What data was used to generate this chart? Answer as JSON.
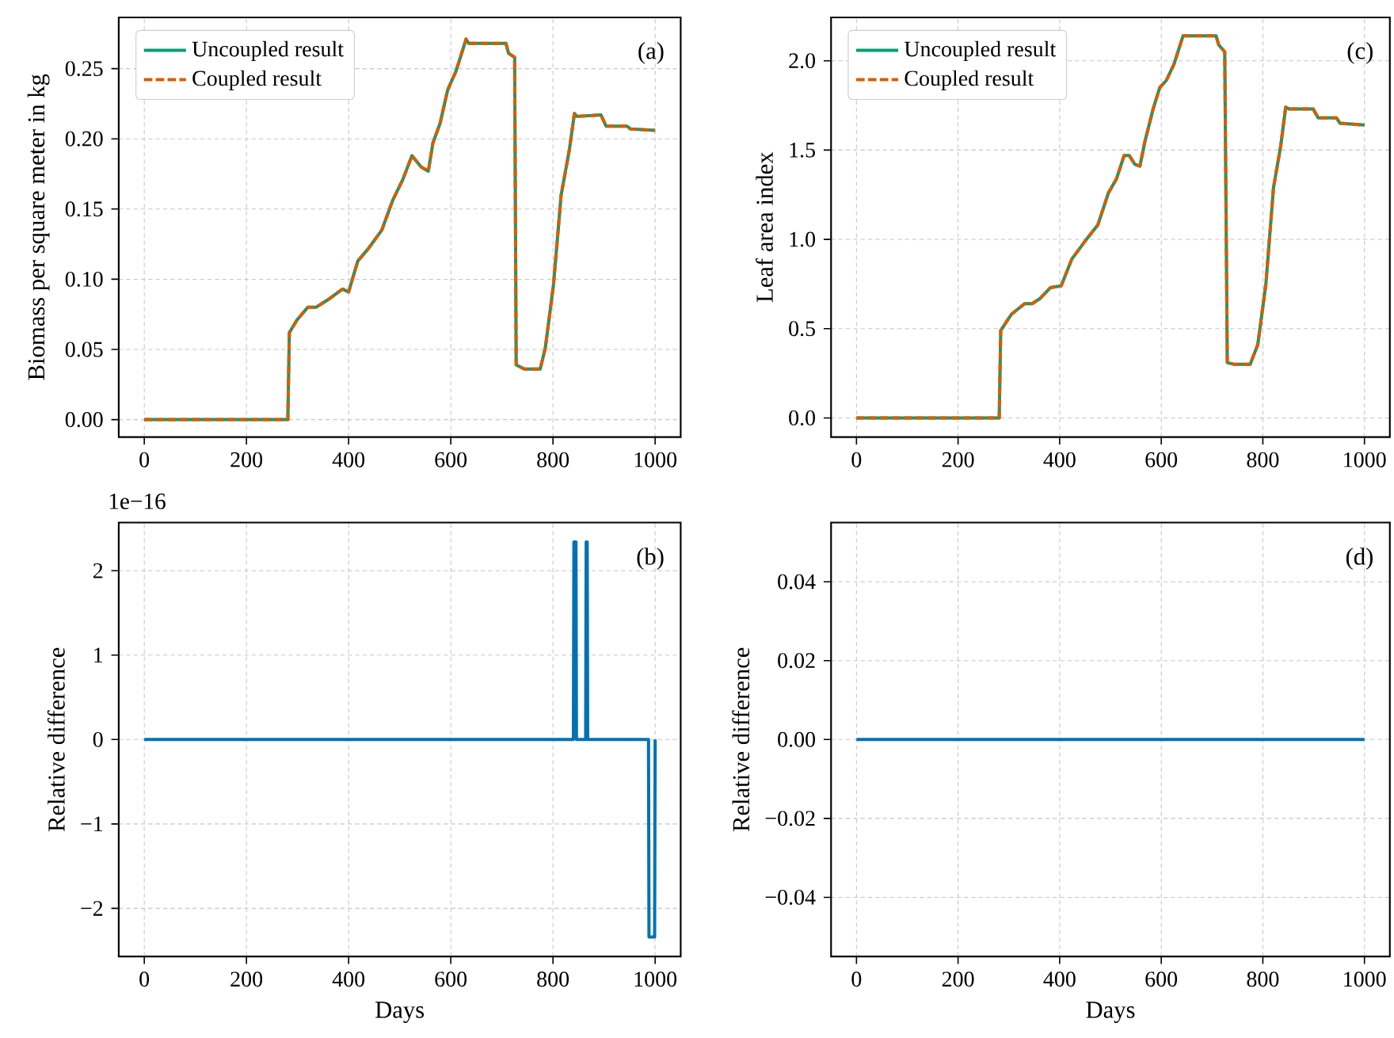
{
  "chart_data": [
    {
      "type": "line",
      "ylabel": "Biomass per square meter in kg",
      "annotations": [
        "(a)"
      ],
      "xlim": [
        -50,
        1050
      ],
      "ylim": [
        -0.0124,
        0.2865
      ],
      "xticks": [
        0,
        200,
        400,
        600,
        800,
        1000
      ],
      "yticks": [
        {
          "value": 0,
          "label": "0.00"
        },
        {
          "value": 0.05,
          "label": "0.05"
        },
        {
          "value": 0.1,
          "label": "0.10"
        },
        {
          "value": 0.15,
          "label": "0.15"
        },
        {
          "value": 0.2,
          "label": "0.20"
        },
        {
          "value": 0.25,
          "label": "0.25"
        }
      ],
      "grid": true,
      "legend": "top left",
      "series": [
        {
          "name": "Uncoupled result",
          "color": "#009e73",
          "line_style": "solid",
          "x": [
            0,
            281,
            284,
            299,
            320,
            336,
            362,
            388,
            400,
            418,
            439,
            465,
            486,
            506,
            524,
            542,
            556,
            565,
            579,
            594,
            610,
            630,
            635,
            708,
            713,
            725,
            728,
            744,
            775,
            785,
            801,
            816,
            832,
            842,
            847,
            894,
            904,
            945,
            952,
            1000
          ],
          "values": [
            0,
            0,
            0.062,
            0.071,
            0.08,
            0.08,
            0.086,
            0.093,
            0.091,
            0.113,
            0.122,
            0.135,
            0.156,
            0.171,
            0.188,
            0.18,
            0.177,
            0.197,
            0.211,
            0.235,
            0.248,
            0.271,
            0.268,
            0.268,
            0.261,
            0.258,
            0.039,
            0.036,
            0.036,
            0.051,
            0.096,
            0.16,
            0.192,
            0.218,
            0.216,
            0.217,
            0.209,
            0.209,
            0.207,
            0.206
          ]
        },
        {
          "name": "Coupled result",
          "color": "#d55e00",
          "line_style": "dashed",
          "x": [
            0,
            281,
            284,
            299,
            320,
            336,
            362,
            388,
            400,
            418,
            439,
            465,
            486,
            506,
            524,
            542,
            556,
            565,
            579,
            594,
            610,
            630,
            635,
            708,
            713,
            725,
            728,
            744,
            775,
            785,
            801,
            816,
            832,
            842,
            847,
            894,
            904,
            945,
            952,
            1000
          ],
          "values": [
            0,
            0,
            0.062,
            0.071,
            0.08,
            0.08,
            0.086,
            0.093,
            0.091,
            0.113,
            0.122,
            0.135,
            0.156,
            0.171,
            0.188,
            0.18,
            0.177,
            0.197,
            0.211,
            0.235,
            0.248,
            0.271,
            0.268,
            0.268,
            0.261,
            0.258,
            0.039,
            0.036,
            0.036,
            0.051,
            0.096,
            0.16,
            0.192,
            0.218,
            0.216,
            0.217,
            0.209,
            0.209,
            0.207,
            0.206
          ]
        }
      ]
    },
    {
      "type": "line",
      "ylabel": "Leaf area index",
      "annotations": [
        "(c)"
      ],
      "xlim": [
        -50,
        1050
      ],
      "ylim": [
        -0.107,
        2.243
      ],
      "xticks": [
        0,
        200,
        400,
        600,
        800,
        1000
      ],
      "yticks": [
        {
          "value": 0,
          "label": "0.0"
        },
        {
          "value": 0.5,
          "label": "0.5"
        },
        {
          "value": 1,
          "label": "1.0"
        },
        {
          "value": 1.5,
          "label": "1.5"
        },
        {
          "value": 2,
          "label": "2.0"
        }
      ],
      "grid": true,
      "legend": "top left",
      "series": [
        {
          "name": "Uncoupled result",
          "color": "#009e73",
          "line_style": "solid",
          "x": [
            0,
            281,
            284,
            305,
            331,
            346,
            362,
            382,
            403,
            424,
            450,
            475,
            496,
            512,
            527,
            537,
            548,
            558,
            568,
            584,
            597,
            610,
            625,
            643,
            708,
            713,
            725,
            730,
            744,
            775,
            790,
            806,
            821,
            835,
            845,
            852,
            899,
            909,
            945,
            952,
            1000
          ],
          "values": [
            0,
            0,
            0.49,
            0.58,
            0.64,
            0.64,
            0.67,
            0.73,
            0.74,
            0.89,
            0.99,
            1.08,
            1.26,
            1.34,
            1.47,
            1.47,
            1.42,
            1.41,
            1.55,
            1.73,
            1.85,
            1.89,
            1.98,
            2.14,
            2.14,
            2.09,
            2.05,
            0.31,
            0.3,
            0.3,
            0.41,
            0.75,
            1.29,
            1.52,
            1.74,
            1.73,
            1.73,
            1.68,
            1.68,
            1.65,
            1.64
          ]
        },
        {
          "name": "Coupled result",
          "color": "#d55e00",
          "line_style": "dashed",
          "x": [
            0,
            281,
            284,
            305,
            331,
            346,
            362,
            382,
            403,
            424,
            450,
            475,
            496,
            512,
            527,
            537,
            548,
            558,
            568,
            584,
            597,
            610,
            625,
            643,
            708,
            713,
            725,
            730,
            744,
            775,
            790,
            806,
            821,
            835,
            845,
            852,
            899,
            909,
            945,
            952,
            1000
          ],
          "values": [
            0,
            0,
            0.49,
            0.58,
            0.64,
            0.64,
            0.67,
            0.73,
            0.74,
            0.89,
            0.99,
            1.08,
            1.26,
            1.34,
            1.47,
            1.47,
            1.42,
            1.41,
            1.55,
            1.73,
            1.85,
            1.89,
            1.98,
            2.14,
            2.14,
            2.09,
            2.05,
            0.31,
            0.3,
            0.3,
            0.41,
            0.75,
            1.29,
            1.52,
            1.74,
            1.73,
            1.73,
            1.68,
            1.68,
            1.65,
            1.64
          ]
        }
      ]
    },
    {
      "type": "line",
      "xlabel": "Days",
      "ylabel": "Relative difference",
      "annotations": [
        "(b)",
        "1e−16"
      ],
      "xlim": [
        -50,
        1050
      ],
      "ylim": [
        -2.57,
        2.57
      ],
      "xticks": [
        0,
        200,
        400,
        600,
        800,
        1000
      ],
      "yticks": [
        {
          "value": -2,
          "label": "−2"
        },
        {
          "value": -1,
          "label": "−1"
        },
        0,
        1,
        2
      ],
      "grid": true,
      "series": [
        {
          "color": "#0072b2",
          "line_style": "solid",
          "x": [
            0,
            840,
            841,
            845,
            846,
            864,
            865,
            867,
            868,
            987,
            988,
            999,
            1000
          ],
          "values": [
            0,
            0,
            2.34,
            2.34,
            0,
            0,
            2.34,
            2.34,
            0,
            0,
            -2.34,
            -2.34,
            0
          ]
        }
      ]
    },
    {
      "type": "line",
      "xlabel": "Days",
      "ylabel": "Relative difference",
      "annotations": [
        "(d)"
      ],
      "xlim": [
        -50,
        1050
      ],
      "ylim": [
        -0.055,
        0.055
      ],
      "xticks": [
        0,
        200,
        400,
        600,
        800,
        1000
      ],
      "yticks": [
        {
          "value": -0.04,
          "label": "−0.04"
        },
        {
          "value": -0.02,
          "label": "−0.02"
        },
        {
          "value": 0,
          "label": "0.00"
        },
        {
          "value": 0.02,
          "label": "0.02"
        },
        {
          "value": 0.04,
          "label": "0.04"
        }
      ],
      "grid": true,
      "series": [
        {
          "color": "#0072b2",
          "line_style": "solid",
          "x": [
            0,
            1000
          ],
          "values": [
            0,
            0
          ]
        }
      ]
    }
  ]
}
